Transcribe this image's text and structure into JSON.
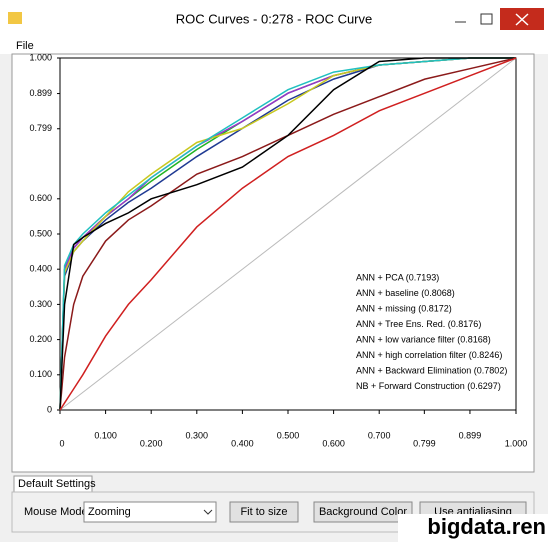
{
  "window": {
    "title": "ROC Curves - 0:278 - ROC Curve",
    "menu": [
      "File"
    ]
  },
  "chart_data": {
    "type": "line",
    "x": [
      0,
      0.01,
      0.03,
      0.05,
      0.1,
      0.15,
      0.2,
      0.3,
      0.4,
      0.5,
      0.6,
      0.7,
      0.8,
      0.9,
      1
    ],
    "series": [
      {
        "name": "ANN + PCA (0.7193)",
        "color": "#8b1a1a",
        "values": [
          0,
          0.15,
          0.3,
          0.38,
          0.48,
          0.54,
          0.58,
          0.67,
          0.72,
          0.78,
          0.84,
          0.89,
          0.94,
          0.97,
          1
        ]
      },
      {
        "name": "ANN + baseline (0.8068)",
        "color": "#1f3a93",
        "values": [
          0,
          0.38,
          0.45,
          0.48,
          0.54,
          0.59,
          0.63,
          0.72,
          0.8,
          0.88,
          0.94,
          0.98,
          0.99,
          1,
          1
        ]
      },
      {
        "name": "ANN + missing (0.8172)",
        "color": "#22b322",
        "values": [
          0,
          0.4,
          0.46,
          0.49,
          0.55,
          0.6,
          0.65,
          0.74,
          0.82,
          0.9,
          0.95,
          0.98,
          0.99,
          1,
          1
        ]
      },
      {
        "name": "ANN + Tree Ens. Red. (0.8176)",
        "color": "#9932cc",
        "values": [
          0,
          0.4,
          0.46,
          0.49,
          0.55,
          0.6,
          0.66,
          0.75,
          0.82,
          0.9,
          0.95,
          0.98,
          0.99,
          1,
          1
        ]
      },
      {
        "name": "ANN + low variance filter (0.8168)",
        "color": "#c8c820",
        "values": [
          0,
          0.39,
          0.45,
          0.48,
          0.55,
          0.62,
          0.67,
          0.76,
          0.8,
          0.87,
          0.95,
          0.98,
          0.99,
          1,
          1
        ]
      },
      {
        "name": "ANN + high correlation filter (0.8246)",
        "color": "#20c0c0",
        "values": [
          0,
          0.41,
          0.47,
          0.5,
          0.56,
          0.61,
          0.66,
          0.75,
          0.83,
          0.91,
          0.96,
          0.98,
          0.99,
          1,
          1
        ]
      },
      {
        "name": "ANN + Backward Elimination (0.7802)",
        "color": "#000000",
        "values": [
          0,
          0.3,
          0.47,
          0.49,
          0.53,
          0.56,
          0.6,
          0.64,
          0.69,
          0.78,
          0.91,
          0.99,
          1,
          1,
          1
        ]
      },
      {
        "name": "NB + Forward Construction (0.6297)",
        "color": "#d02020",
        "values": [
          0,
          0.02,
          0.06,
          0.1,
          0.21,
          0.3,
          0.37,
          0.52,
          0.63,
          0.72,
          0.78,
          0.85,
          0.9,
          0.95,
          1
        ]
      }
    ],
    "xlim": [
      0,
      1
    ],
    "ylim": [
      0,
      1
    ],
    "xticks": [
      0,
      {
        "value": 0.1,
        "label": "0.100"
      },
      {
        "value": 0.2,
        "label": "0.200"
      },
      {
        "value": 0.3,
        "label": "0.300"
      },
      {
        "value": 0.4,
        "label": "0.400"
      },
      {
        "value": 0.5,
        "label": "0.500"
      },
      {
        "value": 0.6,
        "label": "0.600"
      },
      {
        "value": 0.7,
        "label": "0.700"
      },
      0.799,
      0.899,
      {
        "value": 1,
        "label": "1.000"
      }
    ],
    "yticks": [
      0,
      {
        "value": 0.1,
        "label": "0.100"
      },
      {
        "value": 0.2,
        "label": "0.200"
      },
      {
        "value": 0.3,
        "label": "0.300"
      },
      {
        "value": 0.4,
        "label": "0.400"
      },
      {
        "value": 0.5,
        "label": "0.500"
      },
      {
        "value": 0.6,
        "label": "0.600"
      },
      0.799,
      0.899,
      {
        "value": 1,
        "label": "1.000"
      }
    ],
    "grid": false,
    "legend": "lower right"
  },
  "tabs": [
    "Default Settings"
  ],
  "controls": {
    "mouse_mode_label": "Mouse Mode",
    "mouse_mode": "Zooming",
    "buttons": [
      "Fit to size",
      "Background Color",
      "Use antialiasing"
    ]
  },
  "watermark": "bigdata.ren"
}
